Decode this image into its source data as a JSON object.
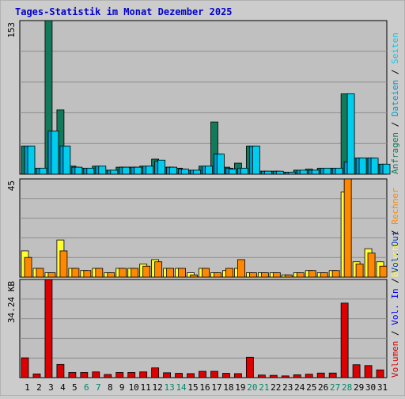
{
  "title": "Tages-Statistik im Monat Dezember 2025",
  "colors": {
    "background": "#cccccc",
    "plot_bg": "#c0c0c0",
    "grid": "#8c8c8c",
    "title": "#0000cc",
    "anfragen": "#117a5a",
    "dateien": "#0099cc",
    "seiten": "#00ccee",
    "besuche": "#ffff33",
    "rechner": "#ff8800",
    "vol_out": "#0033cc",
    "vol_in": "#0000ff",
    "volumen": "#dd0000",
    "weekend": "#00886a"
  },
  "chart_data": [
    {
      "type": "bar",
      "panel": "top",
      "ymax_label": "153",
      "ylim": [
        0,
        153
      ],
      "categories": [
        "1",
        "2",
        "3",
        "4",
        "5",
        "6",
        "7",
        "8",
        "9",
        "10",
        "11",
        "12",
        "13",
        "14",
        "15",
        "16",
        "17",
        "18",
        "19",
        "20",
        "21",
        "22",
        "23",
        "24",
        "25",
        "26",
        "27",
        "28",
        "29",
        "30",
        "31"
      ],
      "weekend_days": [
        "6",
        "7",
        "13",
        "14",
        "20",
        "21",
        "27",
        "28"
      ],
      "series": [
        {
          "name": "Anfragen",
          "values": [
            28,
            6,
            153,
            64,
            8,
            6,
            8,
            4,
            7,
            7,
            8,
            15,
            7,
            6,
            4,
            8,
            52,
            7,
            11,
            28,
            3,
            3,
            2,
            4,
            5,
            6,
            6,
            80,
            16,
            16,
            10
          ]
        },
        {
          "name": "Dateien",
          "values": [
            28,
            6,
            43,
            28,
            7,
            6,
            8,
            4,
            7,
            7,
            8,
            13,
            7,
            5,
            4,
            8,
            20,
            6,
            6,
            28,
            3,
            3,
            2,
            4,
            4,
            6,
            6,
            12,
            16,
            16,
            10
          ]
        },
        {
          "name": "Seiten",
          "values": [
            28,
            6,
            43,
            28,
            7,
            6,
            8,
            4,
            7,
            7,
            8,
            14,
            7,
            5,
            4,
            8,
            20,
            5,
            6,
            28,
            3,
            3,
            2,
            4,
            4,
            6,
            6,
            80,
            16,
            16,
            10
          ]
        }
      ],
      "axis_labels_right": [
        "Anfragen",
        "Dateien",
        "Seiten"
      ]
    },
    {
      "type": "bar",
      "panel": "middle",
      "ymax_label": "45",
      "ylim": [
        0,
        45
      ],
      "series": [
        {
          "name": "Besuche",
          "values": [
            12,
            4,
            2,
            17,
            4,
            3,
            4,
            2,
            4,
            4,
            6,
            8,
            4,
            4,
            2,
            4,
            2,
            3,
            4,
            2,
            2,
            2,
            1,
            2,
            3,
            2,
            3,
            39,
            7,
            13,
            7
          ]
        },
        {
          "name": "Rechner",
          "values": [
            9,
            4,
            2,
            12,
            4,
            3,
            4,
            2,
            4,
            4,
            5,
            7,
            4,
            4,
            1,
            4,
            2,
            4,
            8,
            2,
            2,
            2,
            1,
            2,
            3,
            2,
            3,
            45,
            6,
            11,
            5
          ]
        }
      ],
      "axis_labels_right": [
        "Besuche",
        "Rechner"
      ]
    },
    {
      "type": "bar",
      "panel": "bottom",
      "ymax_label": "34.24 KB",
      "ylim": [
        0,
        34.24
      ],
      "series": [
        {
          "name": "Volumen",
          "values": [
            6.9,
            1.3,
            34.24,
            4.6,
            1.8,
            1.8,
            2.0,
            1.1,
            1.8,
            1.8,
            2.0,
            3.4,
            1.7,
            1.5,
            1.4,
            2.2,
            2.2,
            1.5,
            1.4,
            7.1,
            0.9,
            0.8,
            0.6,
            1.0,
            1.2,
            1.6,
            1.6,
            26.0,
            4.5,
            4.2,
            2.7
          ]
        }
      ],
      "axis_labels_right": [
        "Volumen",
        "Vol. In",
        "Vol. Out"
      ]
    }
  ],
  "separator": " / "
}
